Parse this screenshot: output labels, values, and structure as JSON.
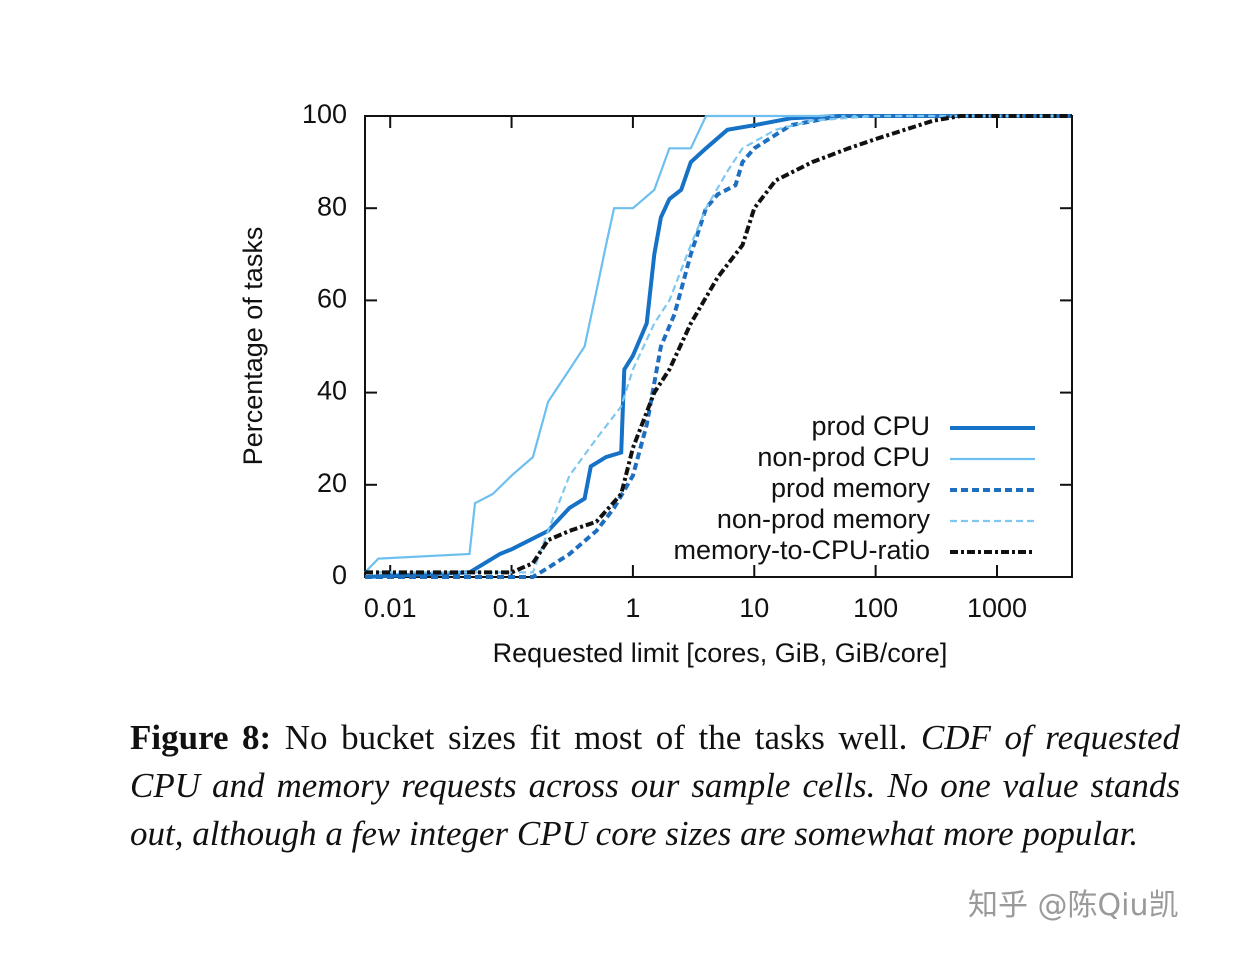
{
  "chart_data": {
    "type": "line",
    "xlabel": "Requested limit [cores, GiB, GiB/core]",
    "ylabel": "Percentage of tasks",
    "xscale": "log",
    "xlim": [
      0.0062,
      4150
    ],
    "ylim": [
      0,
      100
    ],
    "xticks": [
      0.01,
      0.1,
      1,
      10,
      100,
      1000
    ],
    "yticks": [
      0,
      20,
      40,
      60,
      80,
      100
    ],
    "legend": "lower right",
    "series": [
      {
        "name": "prod CPU",
        "color": "#1572c6",
        "linestyle": "solid",
        "linewidth": "thick",
        "x": [
          0.0062,
          0.045,
          0.08,
          0.1,
          0.2,
          0.3,
          0.4,
          0.45,
          0.6,
          0.8,
          0.85,
          1.0,
          1.3,
          1.5,
          1.7,
          2,
          2.5,
          3,
          4,
          6,
          10,
          20,
          50,
          4150
        ],
        "values": [
          0,
          1,
          5,
          6,
          10,
          15,
          17,
          24,
          26,
          27,
          45,
          48,
          55,
          70,
          78,
          82,
          84,
          90,
          93,
          97,
          98,
          99.5,
          100,
          100
        ]
      },
      {
        "name": "non-prod CPU",
        "color": "#6dbff0",
        "linestyle": "solid",
        "linewidth": "thin",
        "x": [
          0.0062,
          0.008,
          0.045,
          0.05,
          0.07,
          0.1,
          0.15,
          0.2,
          0.3,
          0.4,
          0.5,
          0.6,
          0.7,
          1,
          1.5,
          2,
          3,
          4,
          4150
        ],
        "values": [
          1,
          4,
          5,
          16,
          18,
          22,
          26,
          38,
          45,
          50,
          62,
          72,
          80,
          80,
          84,
          93,
          93,
          100,
          100
        ]
      },
      {
        "name": "prod memory",
        "color": "#1f6fc0",
        "linestyle": "dashed",
        "linewidth": "thick",
        "x": [
          0.0062,
          0.15,
          0.2,
          0.3,
          0.5,
          0.7,
          1,
          1.3,
          1.7,
          2.2,
          3,
          4,
          5,
          7,
          8,
          10,
          20,
          50,
          4150
        ],
        "values": [
          0,
          0,
          2,
          5,
          10,
          15,
          22,
          33,
          50,
          57,
          70,
          80,
          83,
          85,
          90,
          93,
          98,
          100,
          100
        ]
      },
      {
        "name": "non-prod memory",
        "color": "#7ec8f0",
        "linestyle": "dashed",
        "linewidth": "thin",
        "x": [
          0.0062,
          0.15,
          0.2,
          0.3,
          0.5,
          0.8,
          1,
          1.5,
          2,
          3,
          4,
          6,
          8,
          15,
          30,
          100,
          4150
        ],
        "values": [
          1,
          1,
          10,
          22,
          30,
          37,
          45,
          55,
          60,
          72,
          80,
          88,
          93,
          97,
          99,
          100,
          100
        ]
      },
      {
        "name": "memory-to-CPU-ratio",
        "color": "#111111",
        "linestyle": "dash-dot",
        "linewidth": "thick",
        "x": [
          0.0062,
          0.1,
          0.15,
          0.2,
          0.3,
          0.5,
          0.8,
          1,
          1.5,
          2,
          3,
          5,
          8,
          10,
          15,
          30,
          60,
          100,
          300,
          500,
          4150
        ],
        "values": [
          1,
          1,
          3,
          8,
          10,
          12,
          18,
          28,
          40,
          45,
          55,
          65,
          72,
          80,
          86,
          90,
          93,
          95,
          99,
          100,
          100
        ]
      }
    ]
  },
  "caption": {
    "label": "Figure 8:",
    "title": "No bucket sizes fit most of the tasks well.",
    "body": "CDF of requested CPU and memory requests across our sample cells. No one value stands out, although a few integer CPU core sizes are somewhat more popular."
  },
  "watermark": "知乎 @陈Qiu凯"
}
